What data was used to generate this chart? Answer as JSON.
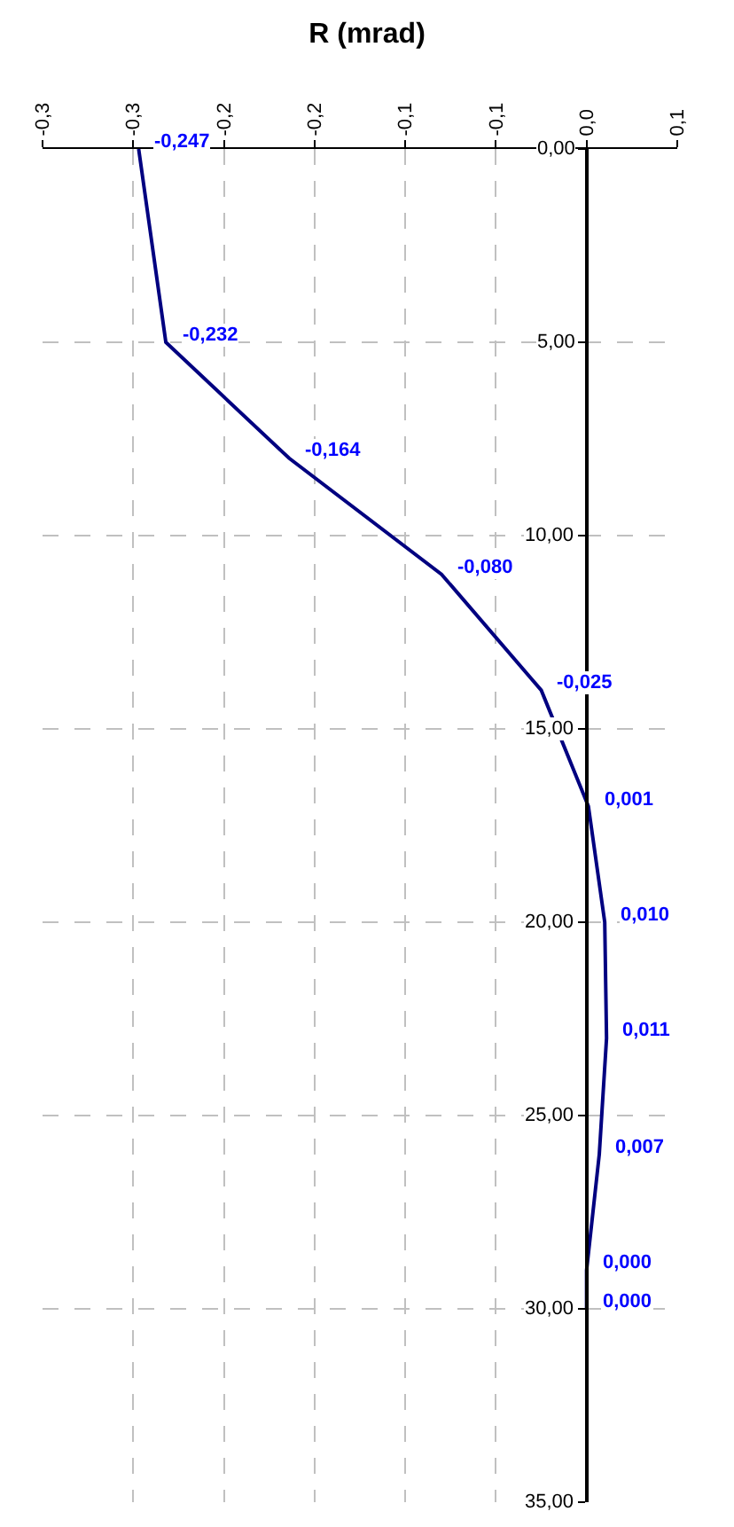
{
  "chart_data": {
    "type": "line",
    "orientation": "horizontal",
    "title": "R (mrad)",
    "x": [
      0,
      5,
      8,
      11,
      14,
      17,
      20,
      23,
      26,
      29,
      30
    ],
    "series": [
      {
        "color": "#000080",
        "values": [
          -0.247,
          -0.232,
          -0.164,
          -0.08,
          -0.025,
          0.001,
          0.01,
          0.011,
          0.007,
          0.0,
          0.0
        ],
        "value_labels": [
          "-0,247",
          "-0,232",
          "-0,164",
          "-0,080",
          "-0,025",
          "0,001",
          "0,010",
          "0,011",
          "0,007",
          "0,000",
          "0,000"
        ]
      }
    ],
    "xlim": [
      -0.3,
      0.05
    ],
    "xticks": [
      {
        "value": -0.3,
        "label": "-0,3"
      },
      {
        "value": -0.25,
        "label": "-0,3"
      },
      {
        "value": -0.2,
        "label": "-0,2"
      },
      {
        "value": -0.15,
        "label": "-0,2"
      },
      {
        "value": -0.1,
        "label": "-0,1"
      },
      {
        "value": -0.05,
        "label": "-0,1"
      },
      {
        "value": 0,
        "label": "0,0"
      },
      {
        "value": 0.05,
        "label": "0,1"
      }
    ],
    "ylim": [
      35,
      0
    ],
    "yticks": [
      {
        "value": 0,
        "label": "0,00"
      },
      {
        "value": 5,
        "label": "5,00"
      },
      {
        "value": 10,
        "label": "10,00"
      },
      {
        "value": 15,
        "label": "15,00"
      },
      {
        "value": 20,
        "label": "20,00"
      },
      {
        "value": 25,
        "label": "25,00"
      },
      {
        "value": 30,
        "label": "30,00"
      },
      {
        "value": 35,
        "label": "35,00"
      }
    ],
    "grid": true,
    "legend": false,
    "marker": "none",
    "line_style": "solid"
  }
}
